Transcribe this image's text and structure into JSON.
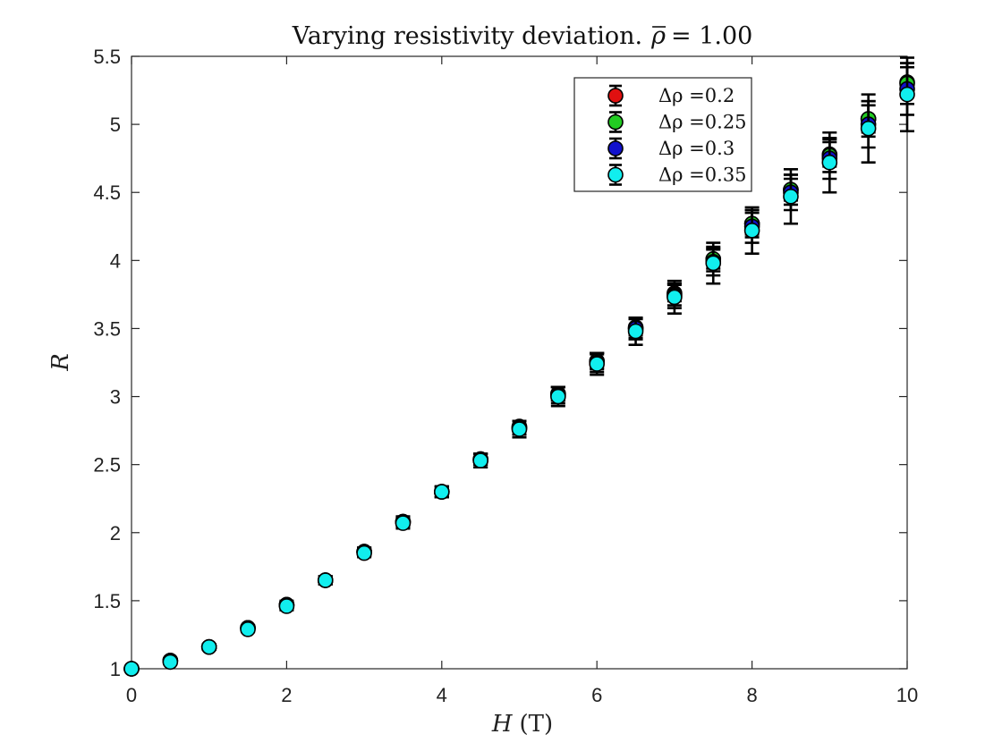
{
  "chart_data": {
    "type": "scatter",
    "title_prefix": "Varying resistivity deviation.",
    "title_math_symbol": "ρ",
    "title_math_value": "= 1.00",
    "xlabel_var": "H",
    "xlabel_unit": "(T)",
    "ylabel": "R",
    "xlim": [
      0,
      10
    ],
    "ylim": [
      1,
      5.5
    ],
    "x_ticks": [
      0,
      2,
      4,
      6,
      8,
      10
    ],
    "y_ticks": [
      1,
      1.5,
      2,
      2.5,
      3,
      3.5,
      4,
      4.5,
      5,
      5.5
    ],
    "x_tick_labels": [
      "0",
      "2",
      "4",
      "6",
      "8",
      "10"
    ],
    "y_tick_labels": [
      "1",
      "1.5",
      "2",
      "2.5",
      "3",
      "3.5",
      "4",
      "4.5",
      "5",
      "5.5"
    ],
    "grid": false,
    "legend_position": "top-right",
    "legend_prefix": "Δρ =",
    "x": [
      0,
      0.5,
      1,
      1.5,
      2,
      2.5,
      3,
      3.5,
      4,
      4.5,
      5,
      5.5,
      6,
      6.5,
      7,
      7.5,
      8,
      8.5,
      9,
      9.5,
      10
    ],
    "series": [
      {
        "name": "0.2",
        "color": "#e01010",
        "y": [
          1.0,
          1.06,
          1.16,
          1.3,
          1.47,
          1.65,
          1.86,
          2.08,
          2.3,
          2.54,
          2.78,
          3.02,
          3.26,
          3.51,
          3.76,
          4.01,
          4.27,
          4.52,
          4.78,
          5.04,
          5.31
        ],
        "err": [
          0.01,
          0.01,
          0.01,
          0.02,
          0.02,
          0.02,
          0.03,
          0.03,
          0.03,
          0.04,
          0.04,
          0.05,
          0.05,
          0.06,
          0.06,
          0.07,
          0.08,
          0.08,
          0.09,
          0.1,
          0.11
        ]
      },
      {
        "name": "0.25",
        "color": "#22cc22",
        "y": [
          1.0,
          1.06,
          1.16,
          1.3,
          1.47,
          1.65,
          1.86,
          2.08,
          2.3,
          2.54,
          2.77,
          3.02,
          3.26,
          3.5,
          3.75,
          4.01,
          4.27,
          4.52,
          4.77,
          5.04,
          5.3
        ],
        "err": [
          0.01,
          0.01,
          0.02,
          0.02,
          0.02,
          0.03,
          0.03,
          0.03,
          0.04,
          0.04,
          0.05,
          0.05,
          0.06,
          0.07,
          0.08,
          0.09,
          0.1,
          0.11,
          0.12,
          0.13,
          0.15
        ]
      },
      {
        "name": "0.3",
        "color": "#1111cc",
        "y": [
          1.0,
          1.06,
          1.16,
          1.3,
          1.47,
          1.65,
          1.86,
          2.08,
          2.3,
          2.53,
          2.77,
          3.01,
          3.25,
          3.5,
          3.74,
          3.99,
          4.25,
          4.5,
          4.75,
          5.0,
          5.26
        ],
        "err": [
          0.01,
          0.01,
          0.02,
          0.02,
          0.03,
          0.03,
          0.03,
          0.04,
          0.04,
          0.05,
          0.05,
          0.06,
          0.07,
          0.08,
          0.09,
          0.1,
          0.12,
          0.13,
          0.15,
          0.17,
          0.19
        ]
      },
      {
        "name": "0.35",
        "color": "#11eeee",
        "y": [
          1.0,
          1.05,
          1.16,
          1.29,
          1.46,
          1.65,
          1.85,
          2.07,
          2.3,
          2.53,
          2.76,
          3.0,
          3.24,
          3.48,
          3.73,
          3.98,
          4.22,
          4.47,
          4.72,
          4.97,
          5.22
        ],
        "err": [
          0.01,
          0.01,
          0.02,
          0.02,
          0.03,
          0.03,
          0.03,
          0.04,
          0.04,
          0.05,
          0.06,
          0.07,
          0.08,
          0.1,
          0.12,
          0.15,
          0.17,
          0.2,
          0.22,
          0.25,
          0.27
        ]
      }
    ]
  }
}
